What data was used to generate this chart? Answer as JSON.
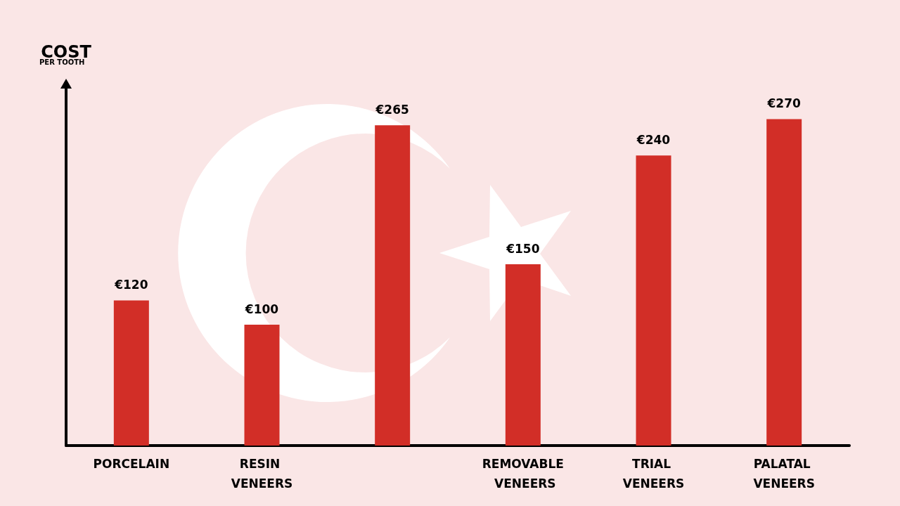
{
  "chart_data": {
    "type": "bar",
    "ylabel": "COST",
    "annotations": [
      "PER TOOTH"
    ],
    "categories": [
      "PORCELAIN",
      "RESIN VENEERS",
      null,
      "REMOVABLE VENEERS",
      "TRIAL VENEERS",
      "PALATAL VENEERS"
    ],
    "values": [
      120,
      100,
      265,
      150,
      240,
      270
    ],
    "value_labels": [
      "€120",
      "€100",
      "€265",
      "€150",
      "€240",
      "€270"
    ],
    "color": "#d22e27",
    "grid": false
  }
}
